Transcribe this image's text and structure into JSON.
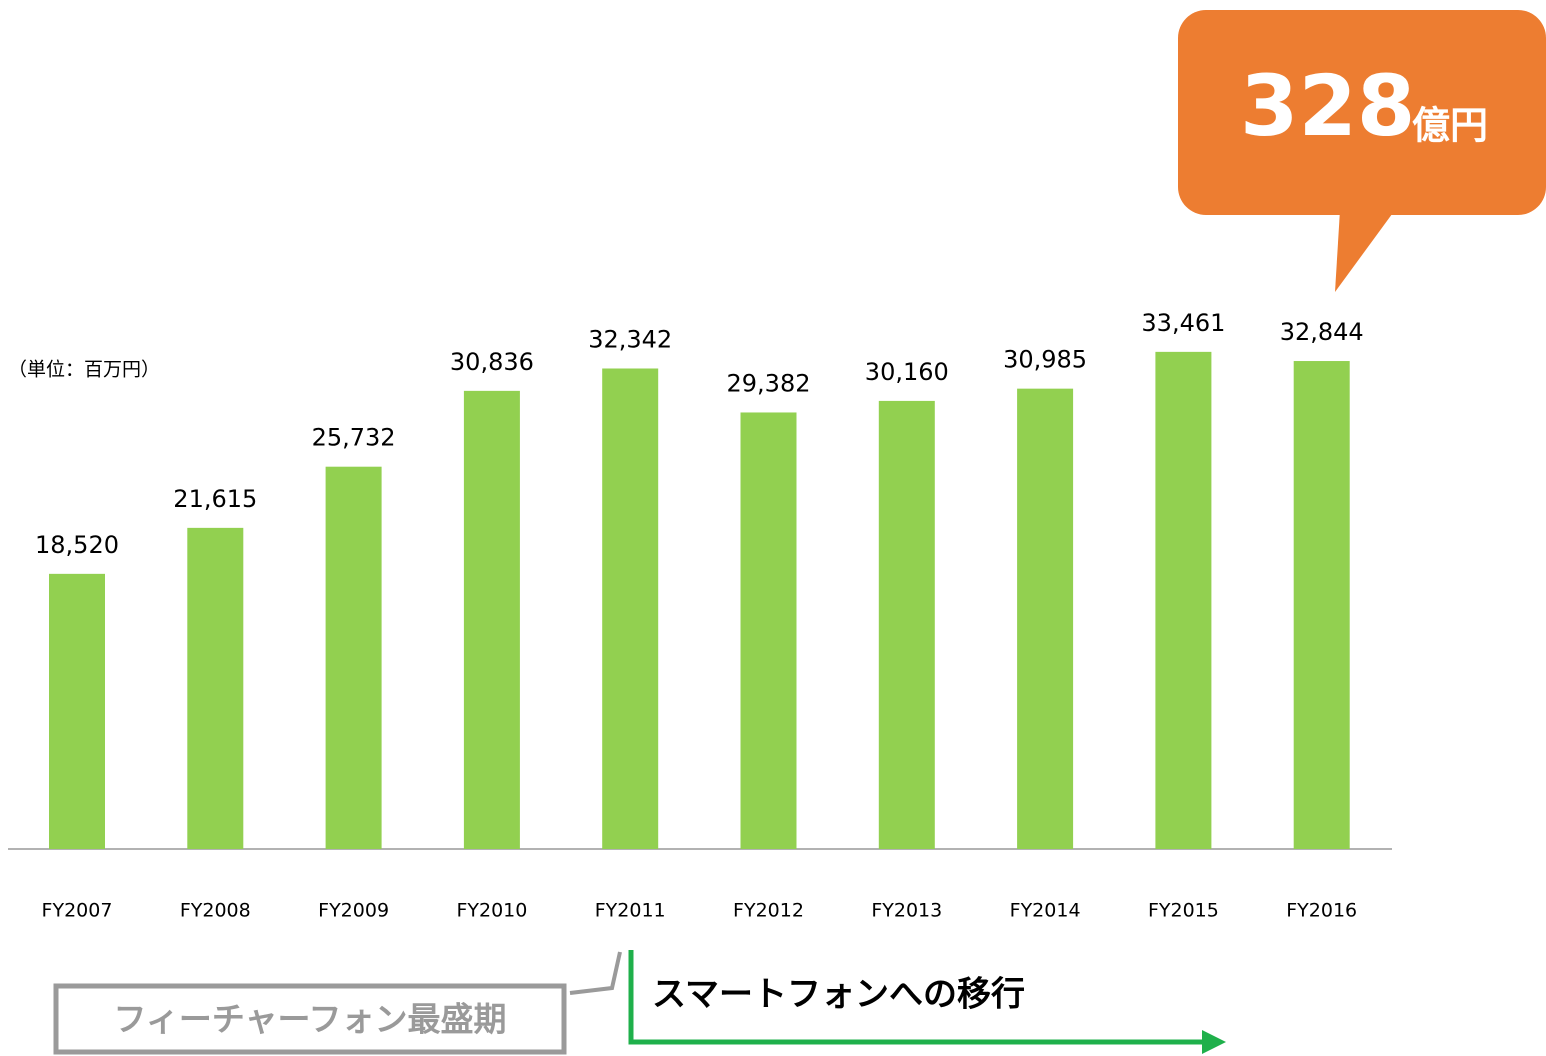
{
  "chart_data": {
    "type": "bar",
    "unit_label": "（単位：百万円）",
    "categories": [
      "FY2007",
      "FY2008",
      "FY2009",
      "FY2010",
      "FY2011",
      "FY2012",
      "FY2013",
      "FY2014",
      "FY2015",
      "FY2016"
    ],
    "values": [
      18520,
      21615,
      25732,
      30836,
      32342,
      29382,
      30160,
      30985,
      33461,
      32844
    ],
    "value_labels": [
      "18,520",
      "21,615",
      "25,732",
      "30,836",
      "32,342",
      "29,382",
      "30,160",
      "30,985",
      "33,461",
      "32,844"
    ],
    "color": "#92d050",
    "ylim": [
      0,
      35000
    ],
    "callout": {
      "number": "328",
      "unit": "億円"
    },
    "annotations": {
      "feature_phone": "フィーチャーフォン最盛期",
      "smartphone": "スマートフォンへの移行"
    }
  }
}
